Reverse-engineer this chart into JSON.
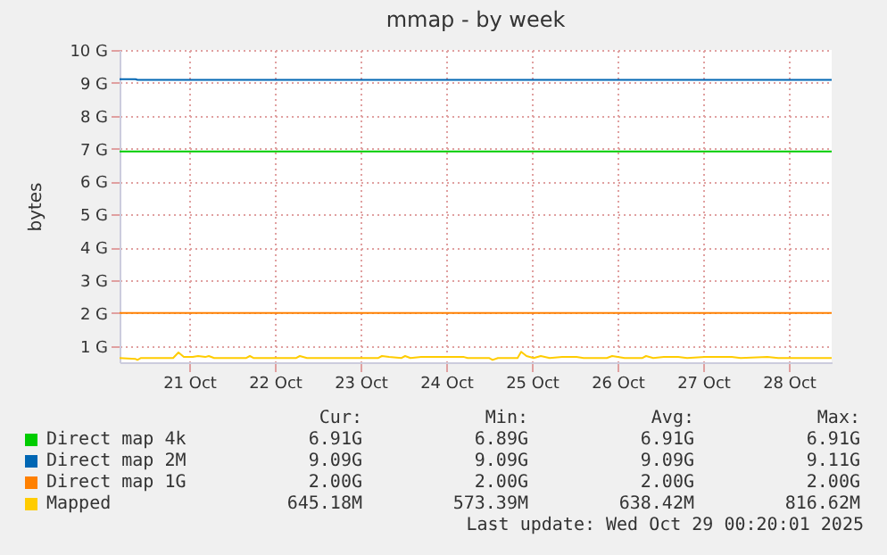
{
  "chart_data": {
    "type": "line",
    "title": "mmap - by week",
    "ylabel": "bytes",
    "xlim": [
      "2025-10-20T16:30",
      "2025-10-29T00:00"
    ],
    "xticks": [
      {
        "value": "2025-10-21T12:00",
        "label": "21 Oct"
      },
      {
        "value": "2025-10-22T12:00",
        "label": "22 Oct"
      },
      {
        "value": "2025-10-23T12:00",
        "label": "23 Oct"
      },
      {
        "value": "2025-10-24T12:00",
        "label": "24 Oct"
      },
      {
        "value": "2025-10-25T12:00",
        "label": "25 Oct"
      },
      {
        "value": "2025-10-26T12:00",
        "label": "26 Oct"
      },
      {
        "value": "2025-10-27T12:00",
        "label": "27 Oct"
      },
      {
        "value": "2025-10-28T12:00",
        "label": "28 Oct"
      }
    ],
    "ylim": [
      0.5,
      10
    ],
    "yticks": [
      {
        "value": 1,
        "label": "1 G"
      },
      {
        "value": 2,
        "label": "2 G"
      },
      {
        "value": 3,
        "label": "3 G"
      },
      {
        "value": 4,
        "label": "4 G"
      },
      {
        "value": 5,
        "label": "5 G"
      },
      {
        "value": 6,
        "label": "6 G"
      },
      {
        "value": 7,
        "label": "7 G"
      },
      {
        "value": 8,
        "label": "8 G"
      },
      {
        "value": 9,
        "label": "9 G"
      },
      {
        "value": 10,
        "label": "10 G"
      }
    ],
    "grid": true,
    "legend": "bottom",
    "series": [
      {
        "name": "Direct map 4k",
        "color": "#00cc00",
        "x": [
          "2025-10-20T16:30",
          "2025-10-29T00:00"
        ],
        "values": [
          6.91,
          6.91
        ]
      },
      {
        "name": "Direct map 2M",
        "color": "#0066b3",
        "x": [
          "2025-10-20T16:30",
          "2025-10-20T21:00",
          "2025-10-20T21:30",
          "2025-10-29T00:00"
        ],
        "values": [
          9.11,
          9.11,
          9.09,
          9.09
        ]
      },
      {
        "name": "Direct map 1G",
        "color": "#ff8000",
        "x": [
          "2025-10-20T16:30",
          "2025-10-29T00:00"
        ],
        "values": [
          2.0,
          2.0
        ]
      },
      {
        "name": "Mapped",
        "color": "#ffcc00",
        "x": [
          "2025-10-20T16:30",
          "2025-10-20T21:00",
          "2025-10-20T21:30",
          "2025-10-20T22:30",
          "2025-10-21T07:30",
          "2025-10-21T09:00",
          "2025-10-21T10:30",
          "2025-10-21T13:00",
          "2025-10-21T14:30",
          "2025-10-21T16:30",
          "2025-10-21T17:30",
          "2025-10-21T19:00",
          "2025-10-22T04:00",
          "2025-10-22T05:00",
          "2025-10-22T06:00",
          "2025-10-22T18:00",
          "2025-10-22T19:00",
          "2025-10-22T21:00",
          "2025-10-23T17:00",
          "2025-10-23T18:00",
          "2025-10-23T20:00",
          "2025-10-23T23:30",
          "2025-10-24T00:30",
          "2025-10-24T02:00",
          "2025-10-24T05:00",
          "2025-10-24T17:00",
          "2025-10-24T18:00",
          "2025-10-25T00:00",
          "2025-10-25T01:00",
          "2025-10-25T02:30",
          "2025-10-25T08:00",
          "2025-10-25T09:00",
          "2025-10-25T10:30",
          "2025-10-25T12:30",
          "2025-10-25T14:30",
          "2025-10-25T17:00",
          "2025-10-25T20:30",
          "2025-10-26T00:30",
          "2025-10-26T02:30",
          "2025-10-26T09:00",
          "2025-10-26T10:30",
          "2025-10-26T14:00",
          "2025-10-26T19:00",
          "2025-10-26T20:00",
          "2025-10-26T22:00",
          "2025-10-27T01:00",
          "2025-10-27T05:00",
          "2025-10-27T07:30",
          "2025-10-27T12:30",
          "2025-10-27T20:00",
          "2025-10-27T22:30",
          "2025-10-28T06:00",
          "2025-10-28T09:00",
          "2025-10-29T00:00"
        ],
        "values": [
          0.63,
          0.6,
          0.57,
          0.63,
          0.63,
          0.8,
          0.66,
          0.66,
          0.69,
          0.66,
          0.69,
          0.63,
          0.63,
          0.69,
          0.63,
          0.63,
          0.69,
          0.63,
          0.63,
          0.69,
          0.66,
          0.63,
          0.69,
          0.63,
          0.66,
          0.66,
          0.63,
          0.63,
          0.57,
          0.63,
          0.63,
          0.82,
          0.69,
          0.63,
          0.69,
          0.63,
          0.66,
          0.66,
          0.63,
          0.63,
          0.69,
          0.63,
          0.63,
          0.69,
          0.63,
          0.66,
          0.66,
          0.63,
          0.66,
          0.66,
          0.63,
          0.66,
          0.63,
          0.63
        ]
      }
    ],
    "annotations": [
      "Cur:",
      "Min:",
      "Avg:",
      "Max:",
      "6.91G",
      "6.89G",
      "6.91G",
      "6.91G",
      "9.09G",
      "9.09G",
      "9.09G",
      "9.11G",
      "2.00G",
      "2.00G",
      "2.00G",
      "2.00G",
      "645.18M",
      "573.39M",
      "638.42M",
      "816.62M",
      "Last update: Wed Oct 29 00:20:01 2025"
    ]
  }
}
